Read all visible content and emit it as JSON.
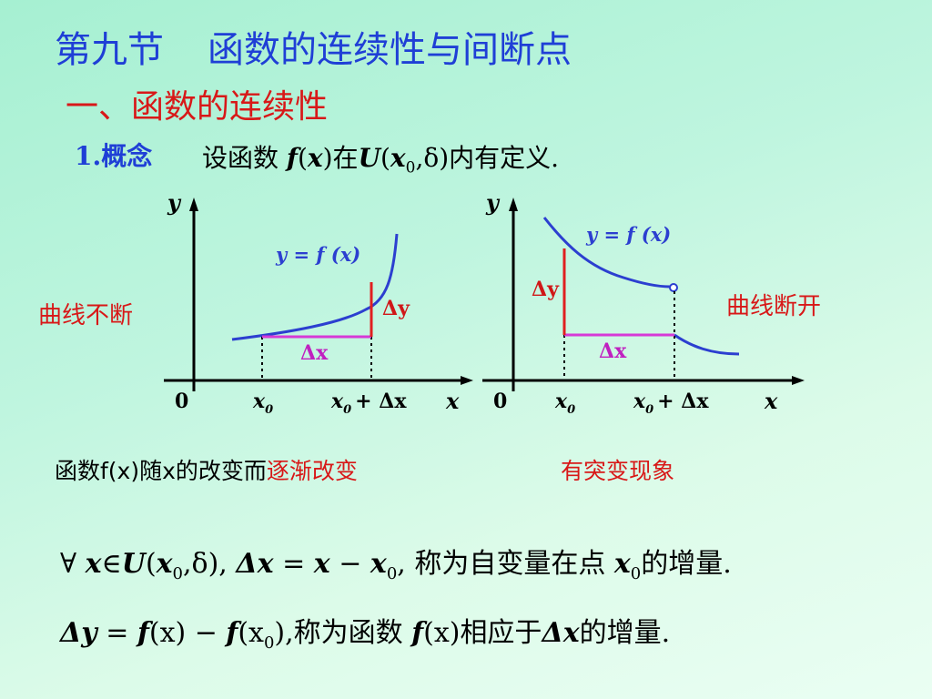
{
  "title": {
    "part1": "第九节",
    "part2": "函数的连续性与间断点"
  },
  "subtitle": "一、函数的连续性",
  "concept": {
    "label": "1.概念",
    "pre": "设函数",
    "f": "f",
    "open": "(",
    "x": "x",
    "close": ")",
    "at": "在",
    "U": "U",
    "u_open": "(",
    "x0": "x",
    "sub0": "0",
    "comma_delta": ",δ)",
    "post": "内有定义."
  },
  "graph_left": {
    "y_axis": "y",
    "x_axis": "x",
    "origin": "0",
    "x0_base": "x",
    "x0_sub": "0",
    "x0dx_base": "x",
    "x0dx_sub": "0",
    "x0dx_rest": "+ Δx",
    "curve_label": "y = f (x)",
    "dx_label": "Δx",
    "dy_label": "Δy",
    "side_label": "曲线不断"
  },
  "graph_right": {
    "y_axis": "y",
    "x_axis": "x",
    "origin": "0",
    "x0_base": "x",
    "x0_sub": "0",
    "x0dx_base": "x",
    "x0dx_sub": "0",
    "x0dx_rest": "+ Δx",
    "curve_label": "y = f (x)",
    "dx_label": "Δx",
    "dy_label": "Δy",
    "side_label": "曲线断开"
  },
  "caption_left": {
    "text": "函数f(x)随x的改变而",
    "emphasis": "逐渐改变"
  },
  "caption_right": "有突变现象",
  "formula1": {
    "forall": "∀",
    "x": "x",
    "in": "∈",
    "U": "U",
    "open": "(",
    "x0": "x",
    "sub0": "0",
    "comma_delta": ",δ),",
    "dx": "Δx",
    "eq": "=",
    "x2": "x",
    "minus": "−",
    "x0b": "x",
    "sub0b": "0",
    "tail": ", 称为自变量在点",
    "x0c": "x",
    "sub0c": "0",
    "end": "的增量."
  },
  "formula2": {
    "dy": "Δy",
    "eq": "=",
    "f1": "f",
    "fx": "(x)",
    "minus": "−",
    "f2": "f",
    "open": "(x",
    "sub0": "0",
    "close": "),",
    "mid": "称为函数",
    "f3": "f",
    "fx3": "(x)",
    "rel": "相应于",
    "dx": "Δx",
    "end": "的增量."
  },
  "colors": {
    "title": "#1f3fd6",
    "accent_red": "#d81818",
    "curve_blue": "#2c3fd0",
    "increment_magenta": "#d63ad6"
  }
}
